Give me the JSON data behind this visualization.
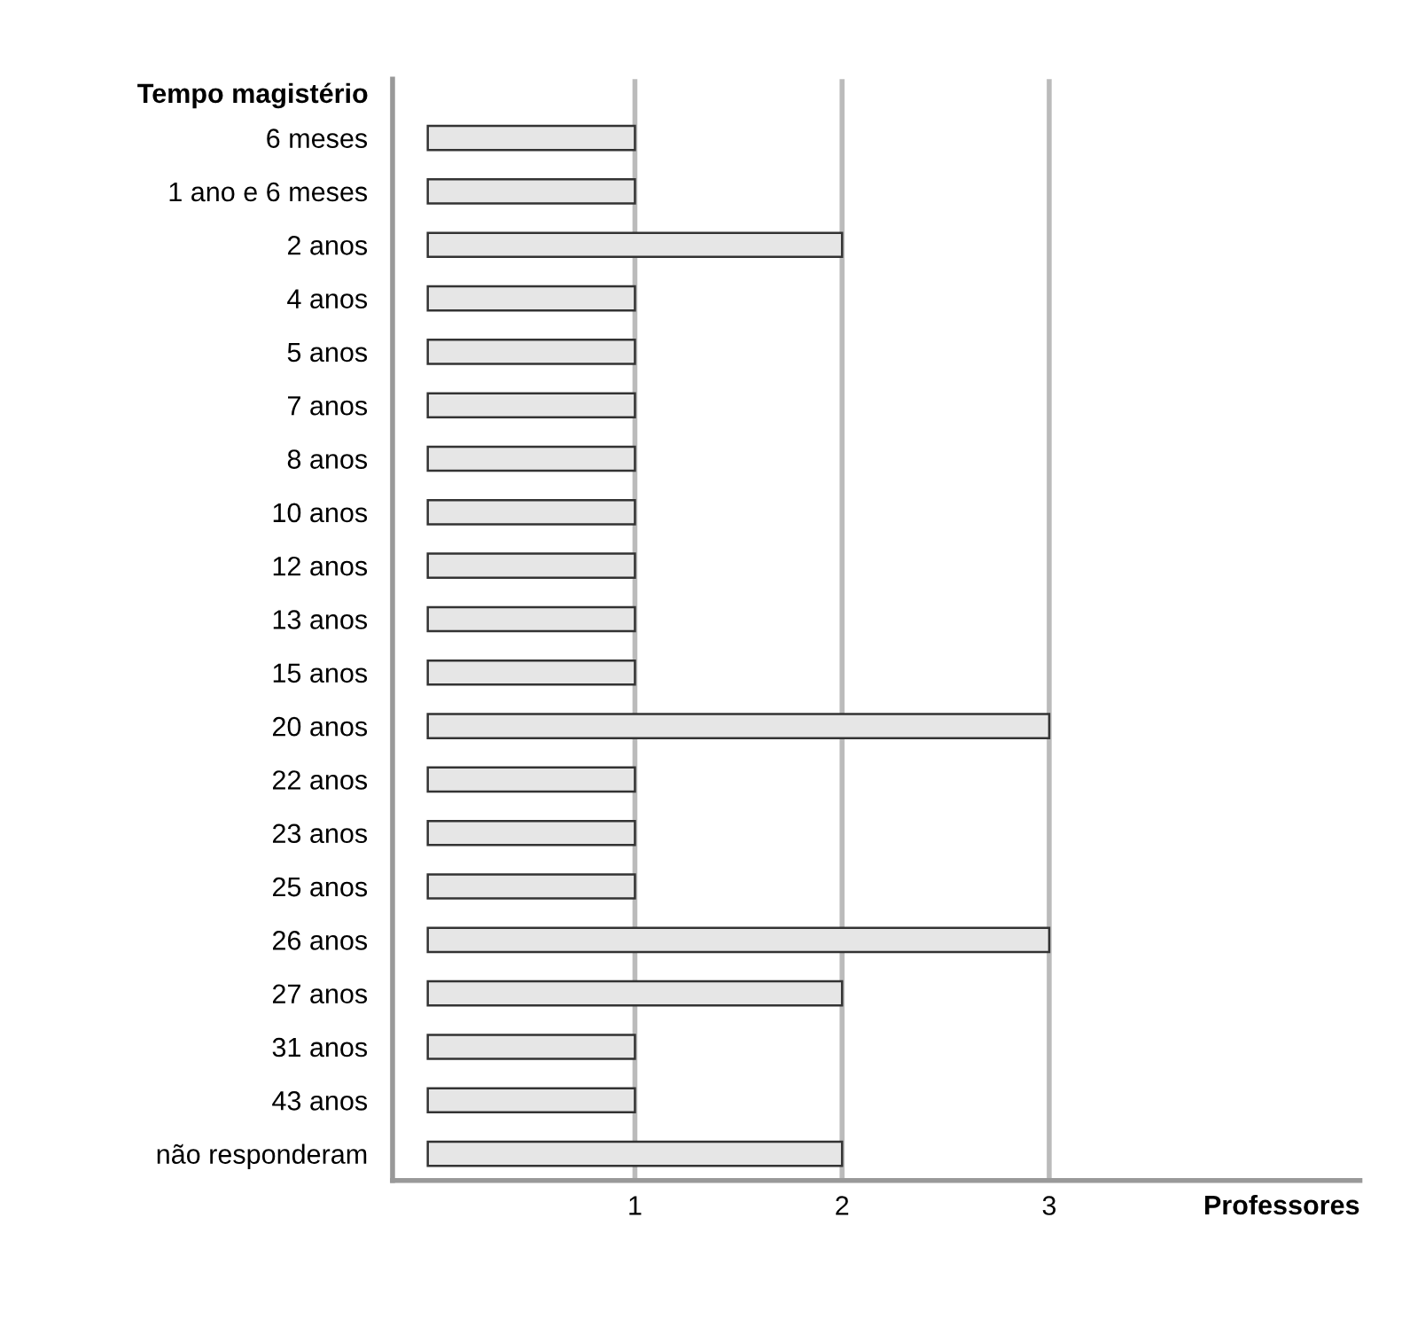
{
  "chart_data": {
    "type": "bar",
    "orientation": "horizontal",
    "ylabel": "Tempo magistério",
    "xlabel": "Professores",
    "categories": [
      "6 meses",
      "1 ano e 6 meses",
      "2 anos",
      "4 anos",
      "5 anos",
      "7 anos",
      "8 anos",
      "10 anos",
      "12 anos",
      "13 anos",
      "15 anos",
      "20 anos",
      "22 anos",
      "23 anos",
      "25 anos",
      "26 anos",
      "27 anos",
      "31 anos",
      "43 anos",
      "não responderam"
    ],
    "values": [
      1,
      1,
      2,
      1,
      1,
      1,
      1,
      1,
      1,
      1,
      1,
      3,
      1,
      1,
      1,
      3,
      2,
      1,
      1,
      2
    ],
    "color": "#e6e6e6",
    "xlim": [
      -0.17,
      4.5
    ],
    "xticks": [
      1,
      2,
      3
    ],
    "grid": "x"
  }
}
